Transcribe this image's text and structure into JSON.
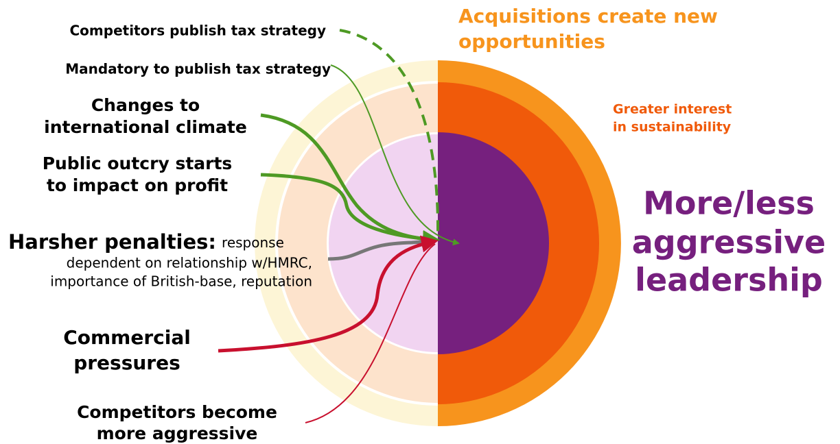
{
  "title": {
    "lines": [
      "More/less",
      "aggressive",
      "leadership"
    ]
  },
  "rings": {
    "outer": {
      "lines": [
        "Acquisitions create new",
        "opportunities"
      ]
    },
    "middle": {
      "lines": [
        "Greater interest",
        "in sustainability"
      ]
    }
  },
  "drivers": [
    {
      "lines": [
        "Competitors publish tax strategy"
      ]
    },
    {
      "lines": [
        "Mandatory to publish tax strategy"
      ]
    },
    {
      "lines": [
        "Changes to",
        "international climate"
      ]
    },
    {
      "lines": [
        "Public outcry starts",
        "to impact on profit"
      ]
    },
    {
      "heading": "Harsher penalties:",
      "lines": [
        "response",
        "dependent on relationship w/HMRC,",
        "importance of British-base, reputation"
      ]
    },
    {
      "lines": [
        "Commercial",
        "pressures"
      ]
    },
    {
      "lines": [
        "Competitors become",
        "more aggressive"
      ]
    }
  ]
}
